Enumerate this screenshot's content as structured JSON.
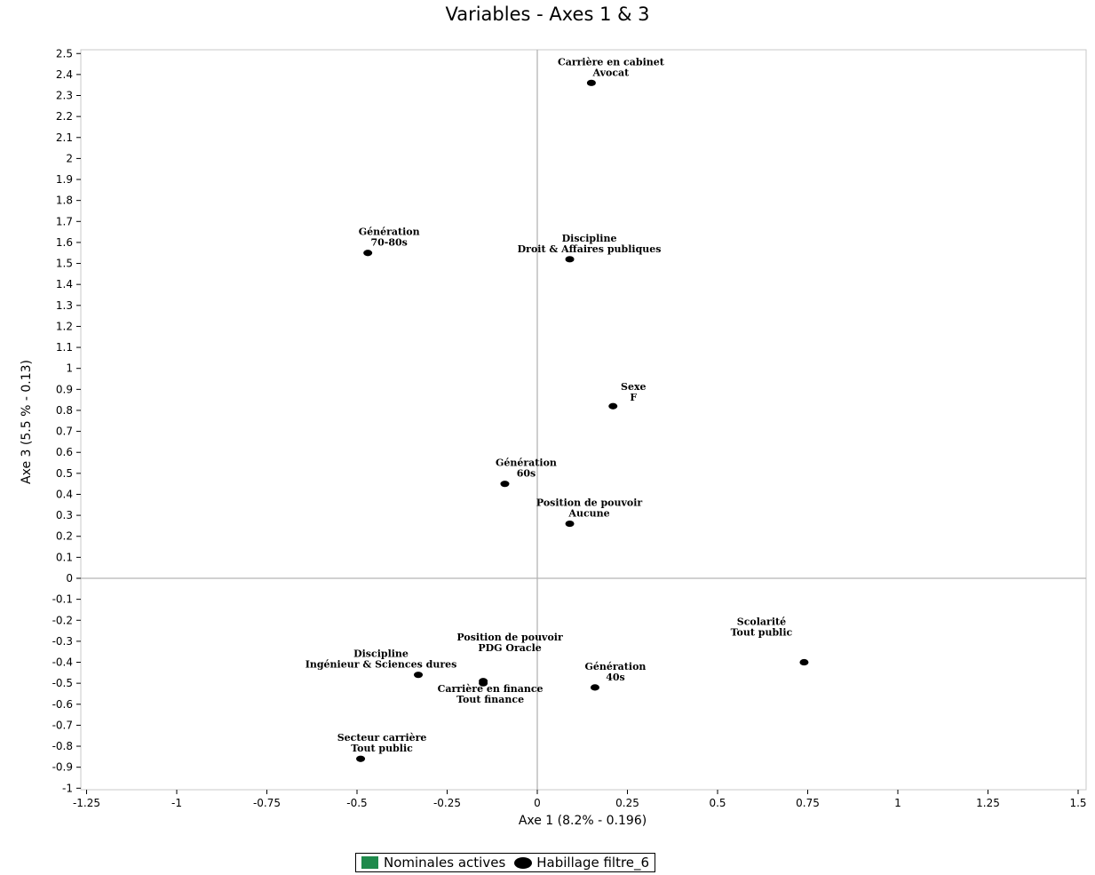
{
  "chart_data": {
    "type": "scatter",
    "title": "Variables - Axes 1 & 3",
    "xlabel": "Axe 1 (8.2% - 0.196)",
    "ylabel": "Axe 3 (5.5 % - 0.13)",
    "xlim": [
      -1.25,
      1.5
    ],
    "ylim": [
      -1,
      2.5
    ],
    "xticks": [
      "-1.25",
      "-1",
      "-0.75",
      "-0.5",
      "-0.25",
      "0",
      "0.25",
      "0.5",
      "0.75",
      "1",
      "1.25",
      "1.5"
    ],
    "yticks": [
      "2.5",
      "2.4",
      "2.3",
      "2.2",
      "2.1",
      "2",
      "1.9",
      "1.8",
      "1.7",
      "1.6",
      "1.5",
      "1.4",
      "1.3",
      "1.2",
      "1.1",
      "1",
      "0.9",
      "0.8",
      "0.7",
      "0.6",
      "0.5",
      "0.4",
      "0.3",
      "0.2",
      "0.1",
      "0",
      "-0.1",
      "-0.2",
      "-0.3",
      "-0.4",
      "-0.5",
      "-0.6",
      "-0.7",
      "-0.8",
      "-0.9",
      "-1"
    ],
    "grid": false,
    "legend_position": "bottom",
    "legend": [
      {
        "label": "Nominales actives",
        "marker": "square",
        "color": "#1f8a4c"
      },
      {
        "label": "Habillage filtre_6",
        "marker": "circle",
        "color": "#000000"
      }
    ],
    "points": [
      {
        "x": 0.15,
        "y": 2.36,
        "lines": [
          "Carrière en cabinet",
          "Avocat"
        ]
      },
      {
        "x": -0.47,
        "y": 1.55,
        "lines": [
          "Génération",
          "70-80s"
        ]
      },
      {
        "x": 0.09,
        "y": 1.52,
        "lines": [
          "Discipline",
          "Droit & Affaires publiques"
        ]
      },
      {
        "x": 0.21,
        "y": 0.82,
        "lines": [
          "Sexe",
          "F"
        ]
      },
      {
        "x": -0.09,
        "y": 0.45,
        "lines": [
          "Génération",
          "60s"
        ]
      },
      {
        "x": 0.09,
        "y": 0.26,
        "lines": [
          "Position de pouvoir",
          "Aucune"
        ]
      },
      {
        "x": 0.74,
        "y": -0.4,
        "lines": [
          "Scolarité",
          "Tout public"
        ]
      },
      {
        "x": -0.15,
        "y": -0.49,
        "lines": [
          "Position de pouvoir",
          "PDG Oracle"
        ]
      },
      {
        "x": -0.33,
        "y": -0.46,
        "lines": [
          "Discipline",
          "Ingénieur & Sciences dures"
        ]
      },
      {
        "x": -0.15,
        "y": -0.5,
        "lines": [
          "Carrière en finance",
          "Tout finance"
        ]
      },
      {
        "x": 0.16,
        "y": -0.52,
        "lines": [
          "Génération",
          "40s"
        ]
      },
      {
        "x": -0.49,
        "y": -0.86,
        "lines": [
          "Secteur carrière",
          "Tout public"
        ]
      }
    ]
  }
}
